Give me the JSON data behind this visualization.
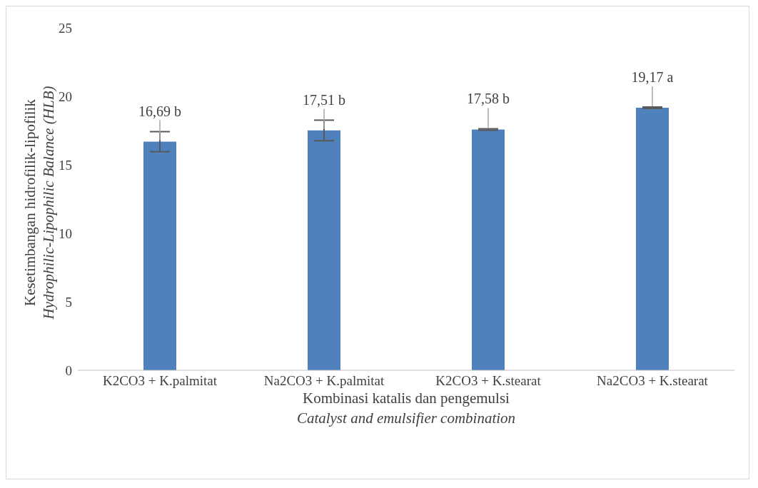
{
  "chart_data": {
    "type": "bar",
    "ylabel": "Kesetimbangan hidrofilik-lipofilik\nHydrophilic-Lipophilic Balance (HLB)",
    "xlabel": "Kombinasi katalis dan pengemulsi\nCatalyst and emulsifier combination",
    "categories": [
      "K2CO3 + K.palmitat",
      "Na2CO3 + K.palmitat",
      "K2CO3 + K.stearat",
      "Na2CO3 + K.stearat"
    ],
    "values": [
      16.69,
      17.51,
      17.58,
      19.17
    ],
    "errors": [
      0.73,
      0.75,
      0.05,
      0.05
    ],
    "value_labels": [
      "16,69 b",
      "17,51 b",
      "17,58 b",
      "19,17 a"
    ],
    "color": "#4f81bd",
    "ylim": [
      0,
      25
    ],
    "yticks": [
      0,
      5,
      10,
      15,
      20,
      25
    ],
    "grid": false,
    "legend": false
  }
}
